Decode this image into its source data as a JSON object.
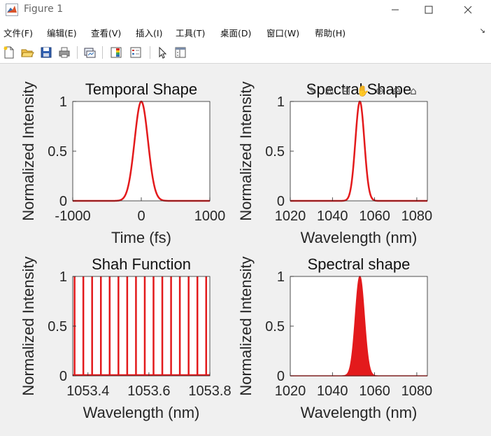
{
  "window": {
    "title": "Figure 1",
    "minimize_icon": "minimize-icon",
    "maximize_icon": "maximize-icon",
    "close_icon": "close-icon"
  },
  "menu": [
    {
      "label": "文件(F)"
    },
    {
      "label": "编辑(E)"
    },
    {
      "label": "查看(V)"
    },
    {
      "label": "插入(I)"
    },
    {
      "label": "工具(T)"
    },
    {
      "label": "桌面(D)"
    },
    {
      "label": "窗口(W)"
    },
    {
      "label": "帮助(H)"
    }
  ],
  "toolbar": [
    {
      "icon": "new-figure-icon"
    },
    {
      "icon": "open-file-icon"
    },
    {
      "icon": "save-icon"
    },
    {
      "icon": "print-icon"
    },
    {
      "icon": "link-plot-icon"
    },
    {
      "icon": "colorbar-icon"
    },
    {
      "icon": "legend-icon"
    },
    {
      "icon": "edit-plot-arrow-icon"
    },
    {
      "icon": "property-inspector-icon"
    }
  ],
  "axes_toolbar": [
    {
      "icon": "brush-icon"
    },
    {
      "icon": "data-tips-icon"
    },
    {
      "icon": "export-icon"
    },
    {
      "icon": "pan-hand-icon"
    },
    {
      "icon": "zoom-in-icon"
    },
    {
      "icon": "zoom-out-icon"
    },
    {
      "icon": "home-icon"
    }
  ],
  "colors": {
    "line": "#e31a1c",
    "axes_bg": "#ffffff",
    "figure_bg": "#f0f0f0",
    "axis": "#262626"
  },
  "chart_data": [
    {
      "type": "line",
      "title": "Temporal Shape",
      "xlabel": "Time (fs)",
      "ylabel": "Normalized Intensity",
      "xlim": [
        -1000,
        1000
      ],
      "ylim": [
        0,
        1
      ],
      "xticks": [
        "-1000",
        "0",
        "1000"
      ],
      "yticks": [
        "0",
        "0.5",
        "1"
      ],
      "grid": false,
      "series": [
        {
          "shape": "gaussian",
          "center": 0,
          "fwhm": 230
        }
      ]
    },
    {
      "type": "line",
      "title": "Spectral Shape",
      "xlabel": "Wavelength (nm)",
      "ylabel": "Normalized Intensity",
      "xlim": [
        1020,
        1085
      ],
      "ylim": [
        0,
        1
      ],
      "xticks": [
        "1020",
        "1040",
        "1060",
        "1080"
      ],
      "yticks": [
        "0",
        "0.5",
        "1"
      ],
      "grid": false,
      "series": [
        {
          "shape": "gaussian",
          "center": 1053,
          "fwhm": 5
        }
      ]
    },
    {
      "type": "line",
      "title": "Shah Function",
      "xlabel": "Wavelength (nm)",
      "ylabel": "Normalized Intensity",
      "xlim": [
        1053.35,
        1053.8
      ],
      "ylim": [
        0,
        1
      ],
      "xticks": [
        "1053.4",
        "1053.6",
        "1053.8"
      ],
      "yticks": [
        "0",
        "0.5",
        "1"
      ],
      "grid": false,
      "series": [
        {
          "shape": "comb",
          "start": 1053.356,
          "spacing": 0.0288,
          "count": 16
        }
      ]
    },
    {
      "type": "area",
      "title": "Spectral shape",
      "xlabel": "Wavelength (nm)",
      "ylabel": "Normalized Intensity",
      "xlim": [
        1020,
        1085
      ],
      "ylim": [
        0,
        1
      ],
      "xticks": [
        "1020",
        "1040",
        "1060",
        "1080"
      ],
      "yticks": [
        "0",
        "0.5",
        "1"
      ],
      "grid": false,
      "series": [
        {
          "shape": "gaussian-comb-fill",
          "center": 1053,
          "fwhm": 5
        }
      ]
    }
  ]
}
